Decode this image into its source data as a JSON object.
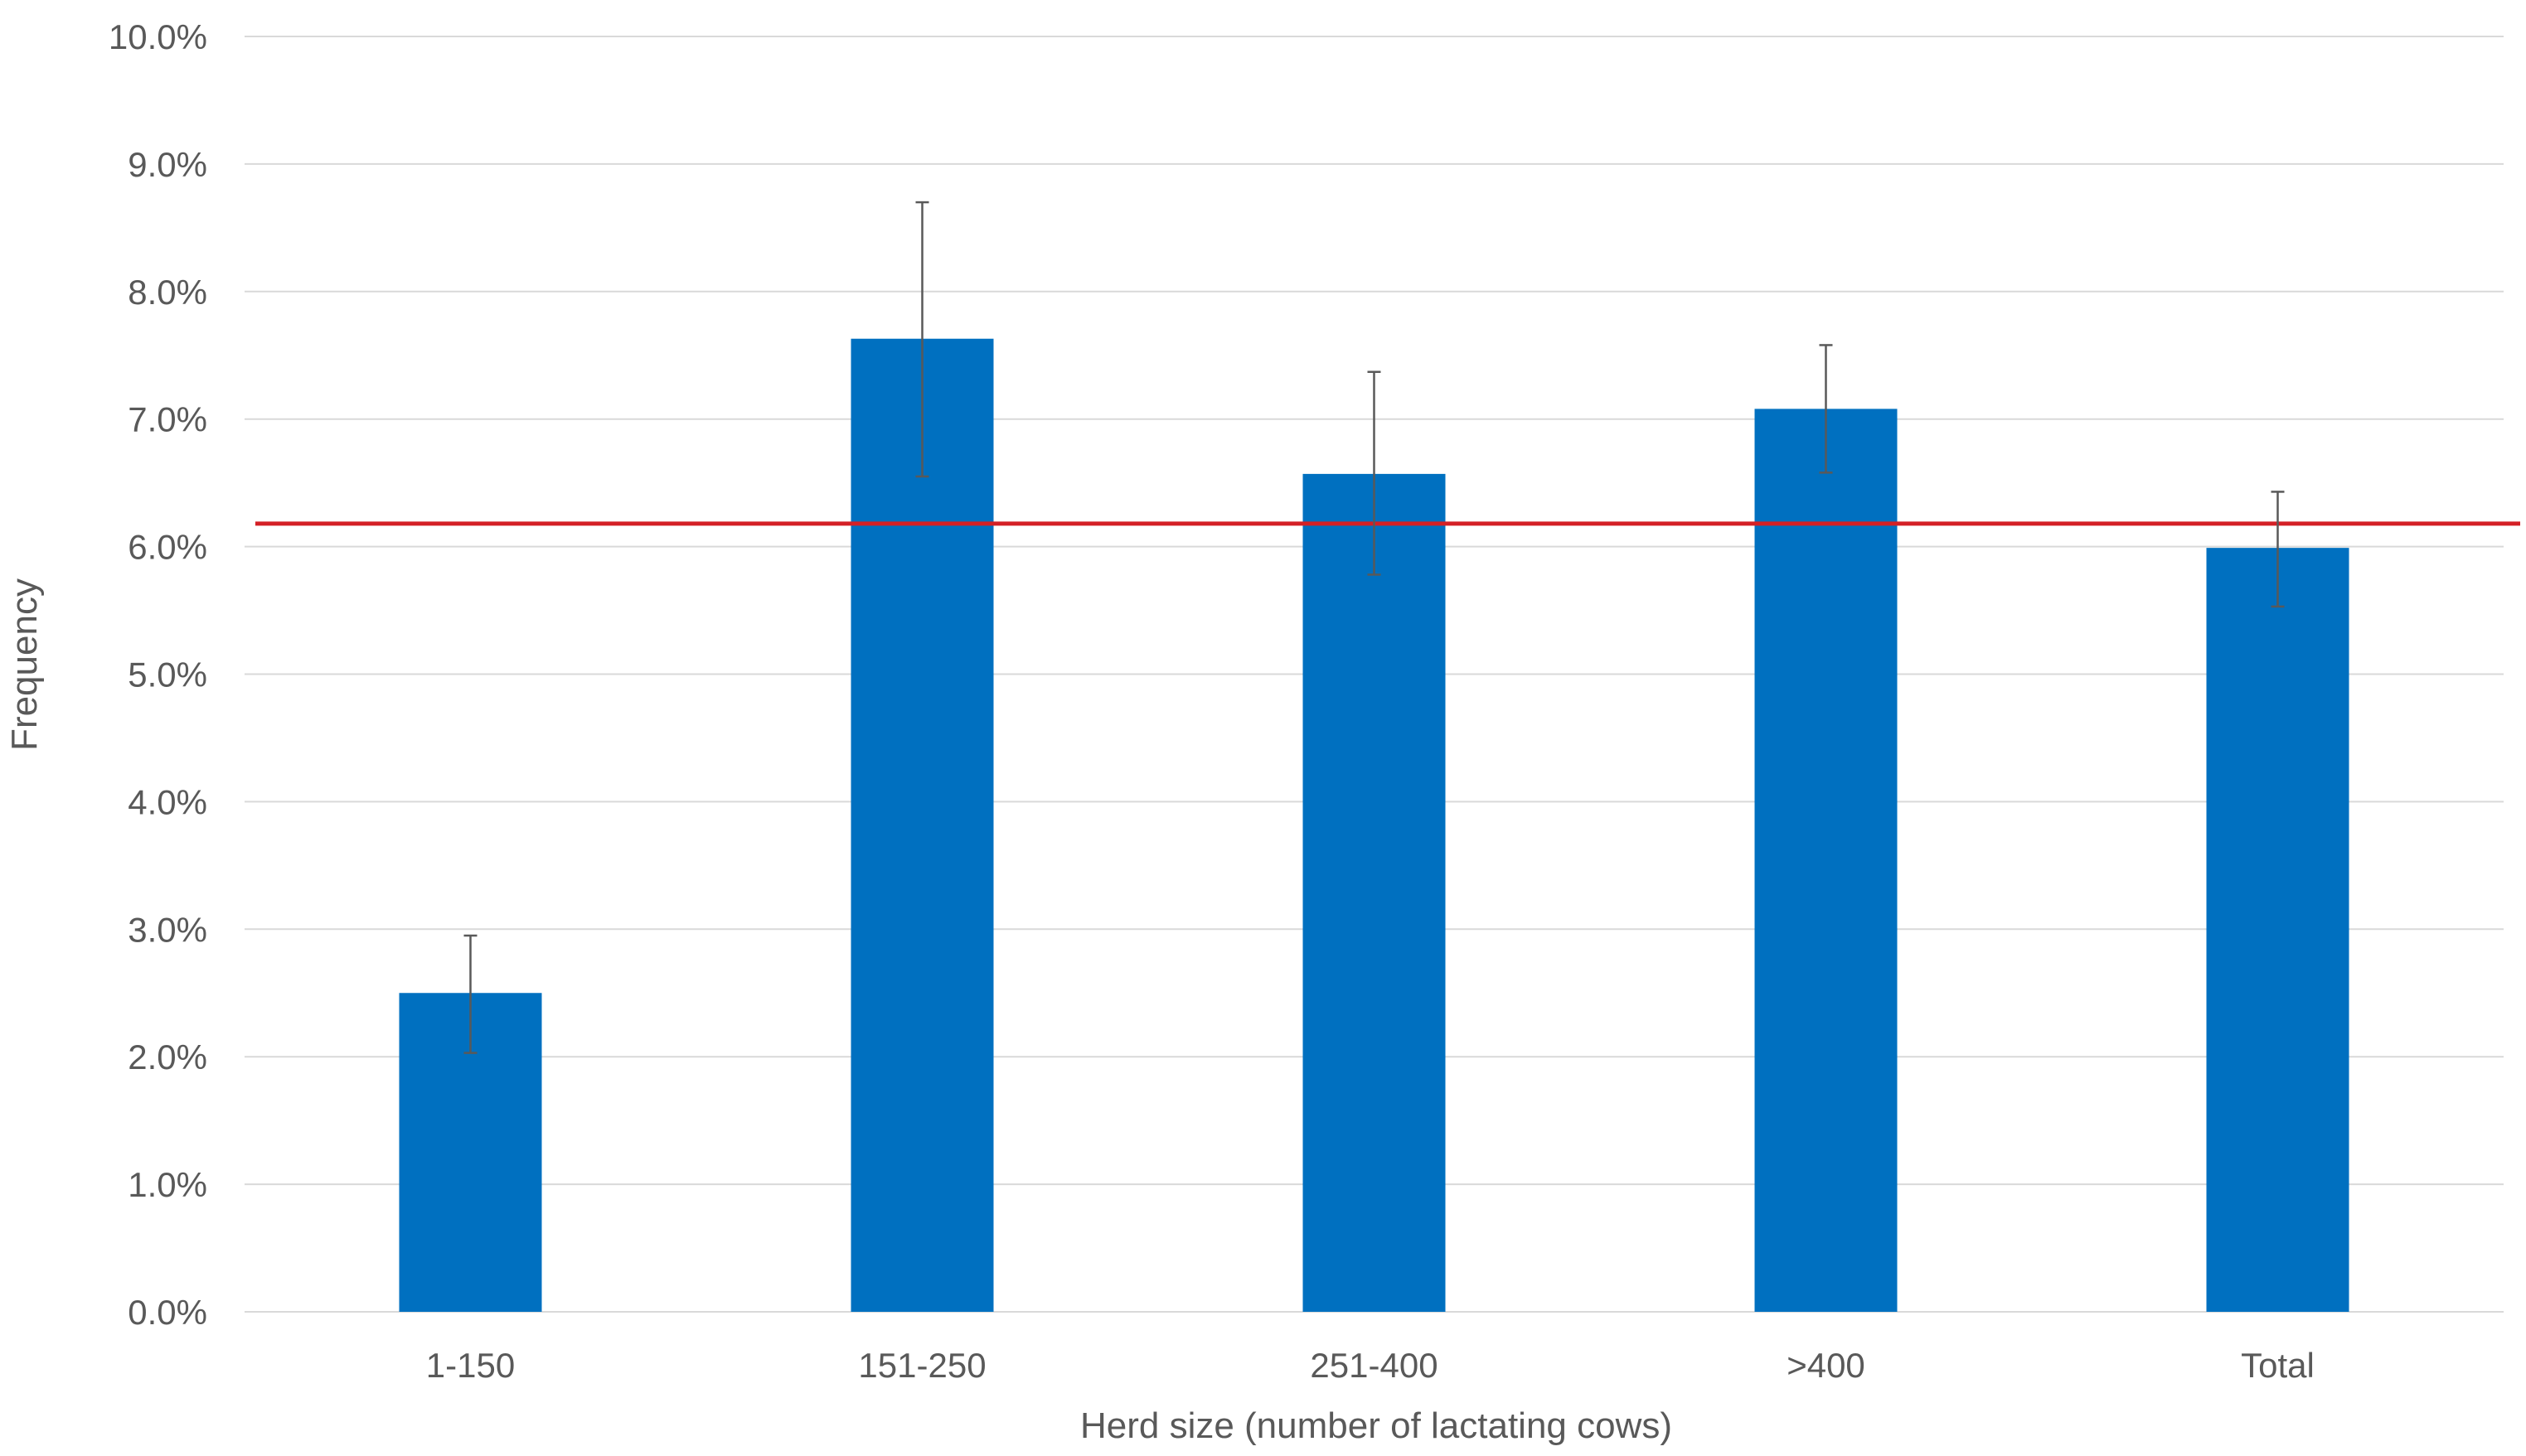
{
  "chart_data": {
    "type": "bar",
    "title": "",
    "xlabel": "Herd size (number of lactating cows)",
    "ylabel": "Frequency",
    "categories": [
      "1-150",
      "151-250",
      "251-400",
      ">400",
      "Total"
    ],
    "values": [
      2.5,
      7.63,
      6.57,
      7.08,
      5.99
    ],
    "error_bars": {
      "lower": [
        2.03,
        6.55,
        5.78,
        6.58,
        5.53
      ],
      "upper": [
        2.95,
        8.7,
        7.37,
        7.58,
        6.43
      ]
    },
    "reference_line": {
      "value": 6.18,
      "color": "#d42026"
    },
    "ylim": [
      0,
      10
    ],
    "y_ticks": [
      0,
      1,
      2,
      3,
      4,
      5,
      6,
      7,
      8,
      9,
      10
    ],
    "y_tick_labels": [
      "0.0%",
      "1.0%",
      "2.0%",
      "3.0%",
      "4.0%",
      "5.0%",
      "6.0%",
      "7.0%",
      "8.0%",
      "9.0%",
      "10.0%"
    ],
    "grid": true,
    "legend": "none",
    "colors": {
      "bar": "#0070c0",
      "grid": "#d9d9d9",
      "error_bar": "#595959",
      "text": "#595959"
    }
  }
}
